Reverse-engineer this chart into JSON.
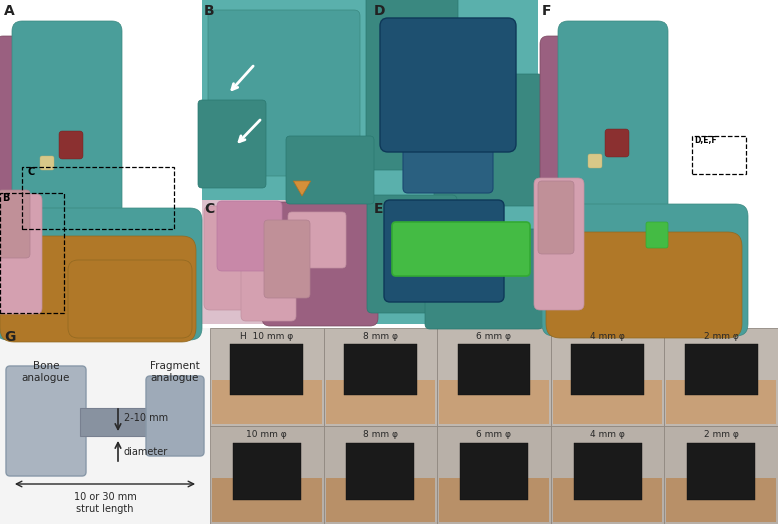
{
  "bg_color": "#ffffff",
  "figsize": [
    7.78,
    5.24
  ],
  "dpi": 100,
  "panel_label_fontsize": 10,
  "panel_label_color": "#222222",
  "teal": "#4a9e9a",
  "teal_light": "#5ab0ac",
  "teal_dark": "#3a8880",
  "purple": "#9a6080",
  "purple_dark": "#7a4860",
  "brown": "#b07828",
  "pink": "#d4a0b0",
  "pink_dark": "#c09098",
  "dark_blue": "#1e5070",
  "dark_blue2": "#2a6080",
  "green": "#44bb44",
  "green_dark": "#33aa33",
  "orange_tri": "#d4903a",
  "diagram_gray": "#9eaab8",
  "diagram_gray2": "#aab4c0",
  "strut_gray": "#8892a0",
  "text_dark": "#282828",
  "text_mid": "#444444",
  "grid_bg1": "#c0b8b0",
  "grid_bg2": "#b8b0a8",
  "grid_border": "#908880",
  "model_dark": "#1a1a1a",
  "hand_skin": "#c8a078",
  "hand_skin2": "#b89068",
  "white": "#ffffff",
  "row1_labels": [
    "H  10 mm φ",
    "8 mm φ",
    "6 mm φ",
    "4 mm φ",
    "2 mm φ"
  ],
  "row2_labels": [
    "10 mm φ",
    "8 mm φ",
    "6 mm φ",
    "4 mm φ",
    "2 mm φ"
  ],
  "label_A": "A",
  "label_B": "B",
  "label_C": "C",
  "label_D": "D",
  "label_E": "E",
  "label_F": "F",
  "label_G": "G",
  "bone_analogue": "Bone\nanalogue",
  "fragment_analogue": "Fragment\nanalogue",
  "dim_down": "↓ 2-10 mm",
  "dim_up": "↑ diameter",
  "strut_label": "10 or 30 mm\nstrut length",
  "C_box_label": "C",
  "B_box_label": "B",
  "DEF_box_label": "D,E,F"
}
